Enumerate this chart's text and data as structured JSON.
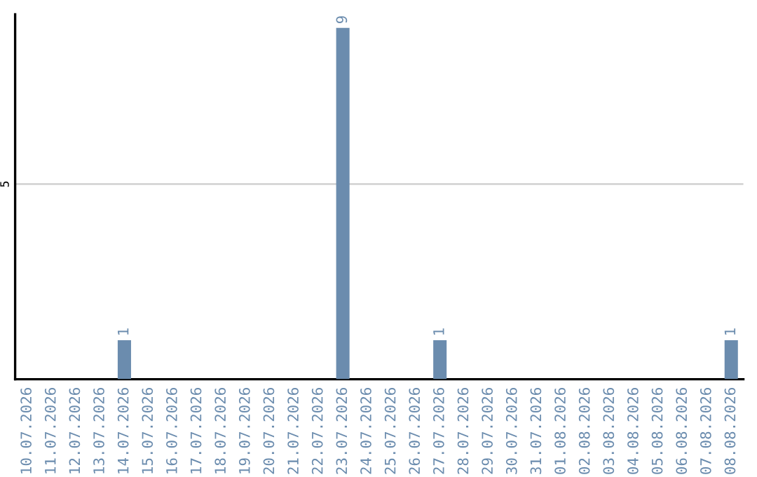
{
  "chart_data": {
    "type": "bar",
    "categories": [
      "10.07.2026",
      "11.07.2026",
      "12.07.2026",
      "13.07.2026",
      "14.07.2026",
      "15.07.2026",
      "16.07.2026",
      "17.07.2026",
      "18.07.2026",
      "19.07.2026",
      "20.07.2026",
      "21.07.2026",
      "22.07.2026",
      "23.07.2026",
      "24.07.2026",
      "25.07.2026",
      "26.07.2026",
      "27.07.2026",
      "28.07.2026",
      "29.07.2026",
      "30.07.2026",
      "31.07.2026",
      "01.08.2026",
      "02.08.2026",
      "03.08.2026",
      "04.08.2026",
      "05.08.2026",
      "06.08.2026",
      "07.08.2026",
      "08.08.2026"
    ],
    "values": [
      0,
      0,
      0,
      0,
      1,
      0,
      0,
      0,
      0,
      0,
      0,
      0,
      0,
      9,
      0,
      0,
      0,
      1,
      0,
      0,
      0,
      0,
      0,
      0,
      0,
      0,
      0,
      0,
      0,
      1
    ],
    "value_labels": [
      null,
      null,
      null,
      null,
      "1",
      null,
      null,
      null,
      null,
      null,
      null,
      null,
      null,
      "9",
      null,
      null,
      null,
      "1",
      null,
      null,
      null,
      null,
      null,
      null,
      null,
      null,
      null,
      null,
      null,
      "1"
    ],
    "color": "#6b8cae",
    "ylim": [
      0,
      9.35
    ],
    "yticks": [
      5
    ],
    "grid": "y"
  }
}
